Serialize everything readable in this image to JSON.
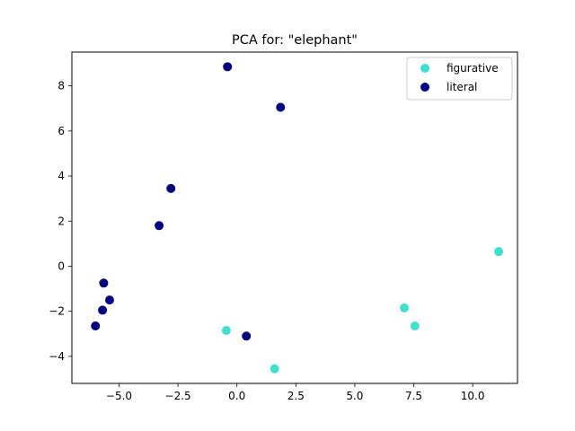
{
  "chart_data": {
    "type": "scatter",
    "title": "PCA for: \"elephant\"",
    "xlabel": "",
    "ylabel": "",
    "xlim": [
      -7.0,
      11.9
    ],
    "ylim": [
      -5.2,
      9.5
    ],
    "xticks": [
      -5.0,
      -2.5,
      0.0,
      2.5,
      5.0,
      7.5,
      10.0
    ],
    "xtick_labels": [
      "−5.0",
      "−2.5",
      "0.0",
      "2.5",
      "5.0",
      "7.5",
      "10.0"
    ],
    "yticks": [
      -4,
      -2,
      0,
      2,
      4,
      6,
      8
    ],
    "ytick_labels": [
      "−4",
      "−2",
      "0",
      "2",
      "4",
      "6",
      "8"
    ],
    "grid": false,
    "legend_position": "top-right",
    "series": [
      {
        "name": "figurative",
        "color": "#40e0d0",
        "points": [
          {
            "x": 11.1,
            "y": 0.65
          },
          {
            "x": 7.1,
            "y": -1.85
          },
          {
            "x": 7.55,
            "y": -2.65
          },
          {
            "x": -0.45,
            "y": -2.85
          },
          {
            "x": 1.6,
            "y": -4.55
          }
        ]
      },
      {
        "name": "literal",
        "color": "#000080",
        "points": [
          {
            "x": -0.4,
            "y": 8.85
          },
          {
            "x": 1.85,
            "y": 7.05
          },
          {
            "x": -2.8,
            "y": 3.45
          },
          {
            "x": -3.3,
            "y": 1.8
          },
          {
            "x": -5.65,
            "y": -0.75
          },
          {
            "x": -5.4,
            "y": -1.5
          },
          {
            "x": -5.7,
            "y": -1.95
          },
          {
            "x": -6.0,
            "y": -2.65
          },
          {
            "x": 0.4,
            "y": -3.1
          }
        ]
      }
    ]
  }
}
